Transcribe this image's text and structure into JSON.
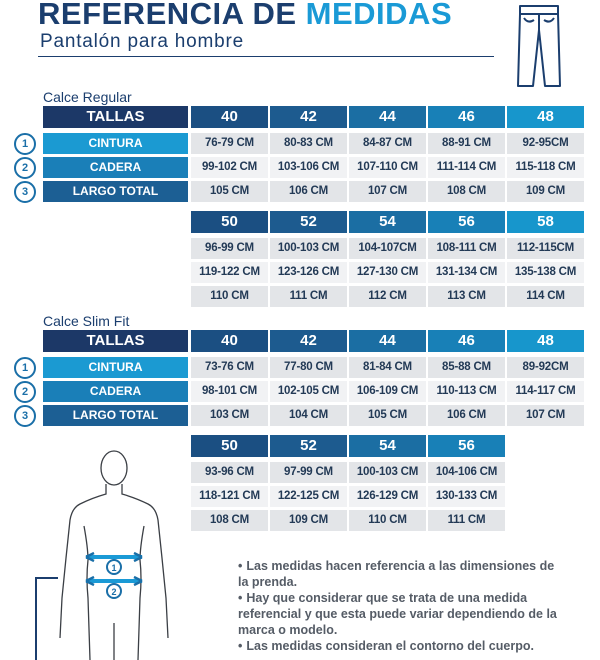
{
  "header": {
    "title_part1": "REFERENCIA DE",
    "title_part2": "MEDIDAS",
    "subtitle": "Pantalón para hombre"
  },
  "icons": {
    "pants": "pants-icon",
    "body": "body-silhouette-icon"
  },
  "colors": {
    "navy": "#1c3867",
    "blue": "#1d5688",
    "cyan": "#1a9ad6",
    "cell": "#e3e5e8"
  },
  "labels": {
    "tallas": "TALLAS",
    "cintura": "CINTURA",
    "cadera": "CADERA",
    "largo": "LARGO TOTAL"
  },
  "badges": [
    "1",
    "2",
    "3"
  ],
  "regular": {
    "title": "Calce Regular",
    "block1": {
      "sizes": [
        "40",
        "42",
        "44",
        "46",
        "48"
      ],
      "cintura": [
        "76-79 CM",
        "80-83 CM",
        "84-87 CM",
        "88-91 CM",
        "92-95CM"
      ],
      "cadera": [
        "99-102 CM",
        "103-106 CM",
        "107-110 CM",
        "111-114 CM",
        "115-118 CM"
      ],
      "largo": [
        "105 CM",
        "106 CM",
        "107 CM",
        "108 CM",
        "109 CM"
      ]
    },
    "block2": {
      "sizes": [
        "50",
        "52",
        "54",
        "56",
        "58"
      ],
      "cintura": [
        "96-99 CM",
        "100-103 CM",
        "104-107CM",
        "108-111 CM",
        "112-115CM"
      ],
      "cadera": [
        "119-122 CM",
        "123-126 CM",
        "127-130 CM",
        "131-134 CM",
        "135-138 CM"
      ],
      "largo": [
        "110 CM",
        "111 CM",
        "112 CM",
        "113 CM",
        "114 CM"
      ]
    }
  },
  "slim": {
    "title": "Calce Slim Fit",
    "block1": {
      "sizes": [
        "40",
        "42",
        "44",
        "46",
        "48"
      ],
      "cintura": [
        "73-76 CM",
        "77-80 CM",
        "81-84 CM",
        "85-88 CM",
        "89-92CM"
      ],
      "cadera": [
        "98-101 CM",
        "102-105 CM",
        "106-109 CM",
        "110-113 CM",
        "114-117 CM"
      ],
      "largo": [
        "103 CM",
        "104 CM",
        "105 CM",
        "106 CM",
        "107 CM"
      ]
    },
    "block2": {
      "sizes": [
        "50",
        "52",
        "54",
        "56"
      ],
      "cintura": [
        "93-96 CM",
        "97-99 CM",
        "100-103 CM",
        "104-106 CM"
      ],
      "cadera": [
        "118-121 CM",
        "122-125 CM",
        "126-129 CM",
        "130-133 CM"
      ],
      "largo": [
        "108 CM",
        "109 CM",
        "110 CM",
        "111 CM"
      ]
    }
  },
  "notes": [
    "Las medidas hacen referencia a las dimensiones de la prenda.",
    "Hay que considerar que se trata de una medida referencial y que esta puede variar dependiendo de la marca o modelo.",
    "Las medidas consideran el contorno del cuerpo."
  ],
  "diagram_markers": [
    "1",
    "2"
  ]
}
